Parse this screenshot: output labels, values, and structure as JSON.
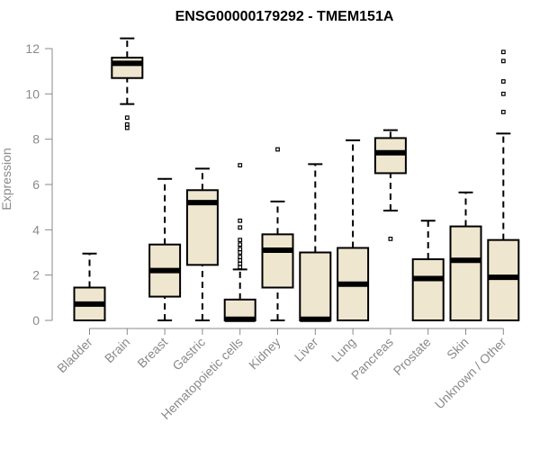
{
  "chart_data": {
    "type": "boxplot",
    "title": "ENSG00000179292 - TMEM151A",
    "ylabel": "Expression",
    "xlabel": "",
    "ylim": [
      0,
      12
    ],
    "yticks": [
      0,
      2,
      4,
      6,
      8,
      10,
      12
    ],
    "box_fill": "#efe6cf",
    "categories": [
      "Bladder",
      "Brain",
      "Breast",
      "Gastric",
      "Hematopoietic cells",
      "Kidney",
      "Liver",
      "Lung",
      "Pancreas",
      "Prostate",
      "Skin",
      "Unknown / Other"
    ],
    "boxes": [
      {
        "whisker_low": 0.0,
        "q1": 0.0,
        "median": 0.72,
        "q3": 1.45,
        "whisker_high": 2.95,
        "outliers": []
      },
      {
        "whisker_low": 9.55,
        "q1": 10.7,
        "median": 11.35,
        "q3": 11.6,
        "whisker_high": 12.45,
        "outliers": [
          8.5,
          8.65,
          8.95
        ]
      },
      {
        "whisker_low": 0.0,
        "q1": 1.05,
        "median": 2.2,
        "q3": 3.35,
        "whisker_high": 6.25,
        "outliers": []
      },
      {
        "whisker_low": 0.0,
        "q1": 2.45,
        "median": 5.2,
        "q3": 5.75,
        "whisker_high": 6.7,
        "outliers": []
      },
      {
        "whisker_low": 0.0,
        "q1": 0.0,
        "median": 0.05,
        "q3": 0.92,
        "whisker_high": 2.25,
        "outliers": [
          2.35,
          2.5,
          2.65,
          2.8,
          3.0,
          3.15,
          3.35,
          3.55,
          4.1,
          4.4,
          6.85
        ]
      },
      {
        "whisker_low": 0.0,
        "q1": 1.45,
        "median": 3.1,
        "q3": 3.8,
        "whisker_high": 5.25,
        "outliers": [
          7.55
        ]
      },
      {
        "whisker_low": 0.0,
        "q1": 0.0,
        "median": 0.05,
        "q3": 3.0,
        "whisker_high": 6.9,
        "outliers": []
      },
      {
        "whisker_low": 0.0,
        "q1": 0.0,
        "median": 1.6,
        "q3": 3.2,
        "whisker_high": 7.95,
        "outliers": []
      },
      {
        "whisker_low": 4.85,
        "q1": 6.5,
        "median": 7.4,
        "q3": 8.05,
        "whisker_high": 8.4,
        "outliers": [
          3.6
        ]
      },
      {
        "whisker_low": 0.0,
        "q1": 0.0,
        "median": 1.85,
        "q3": 2.7,
        "whisker_high": 4.4,
        "outliers": []
      },
      {
        "whisker_low": 0.0,
        "q1": 0.0,
        "median": 2.65,
        "q3": 4.15,
        "whisker_high": 5.65,
        "outliers": []
      },
      {
        "whisker_low": 0.0,
        "q1": 0.0,
        "median": 1.9,
        "q3": 3.55,
        "whisker_high": 8.25,
        "outliers": [
          9.2,
          10.0,
          10.55,
          11.45,
          11.85
        ]
      }
    ]
  }
}
